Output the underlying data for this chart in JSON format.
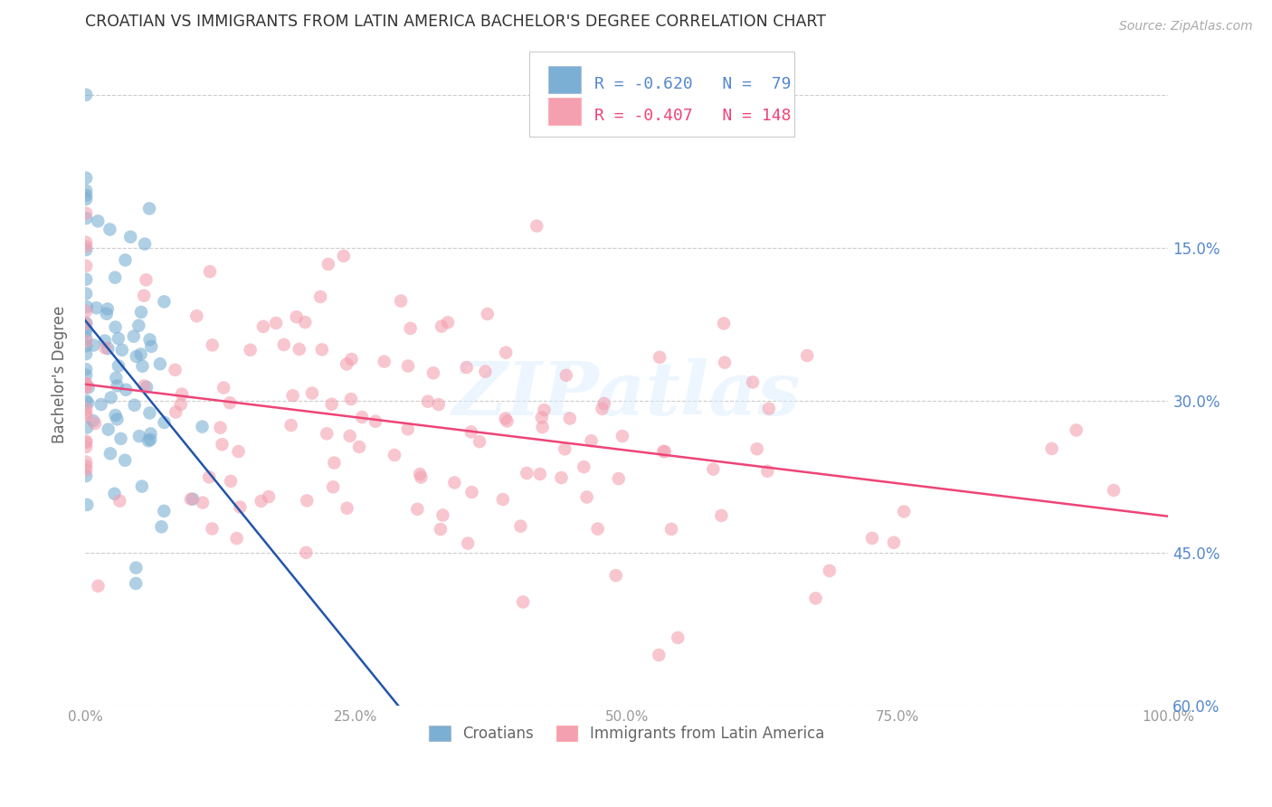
{
  "title": "CROATIAN VS IMMIGRANTS FROM LATIN AMERICA BACHELOR'S DEGREE CORRELATION CHART",
  "source": "Source: ZipAtlas.com",
  "ylabel": "Bachelor's Degree",
  "watermark": "ZIPatlas",
  "blue_R": -0.62,
  "blue_N": 79,
  "pink_R": -0.407,
  "pink_N": 148,
  "legend_label_blue": "Croatians",
  "legend_label_pink": "Immigrants from Latin America",
  "xlim": [
    0.0,
    1.0
  ],
  "ylim": [
    0.0,
    0.65
  ],
  "xtick_vals": [
    0.0,
    0.25,
    0.5,
    0.75,
    1.0
  ],
  "xtick_labels": [
    "0.0%",
    "25.0%",
    "50.0%",
    "75.0%",
    "100.0%"
  ],
  "ytick_vals": [
    0.0,
    0.15,
    0.3,
    0.45,
    0.6
  ],
  "right_ytick_labels": [
    "60.0%",
    "45.0%",
    "30.0%",
    "15.0%",
    ""
  ],
  "blue_color": "#7BAFD4",
  "pink_color": "#F4A0B0",
  "blue_line_color": "#2255AA",
  "pink_line_color": "#EE4477",
  "background_color": "#FFFFFF",
  "grid_color": "#CCCCCC",
  "title_color": "#333333",
  "axis_label_color": "#666666",
  "tick_label_color": "#999999",
  "right_tick_color": "#5588CC",
  "watermark_color": "#DDEEFF"
}
